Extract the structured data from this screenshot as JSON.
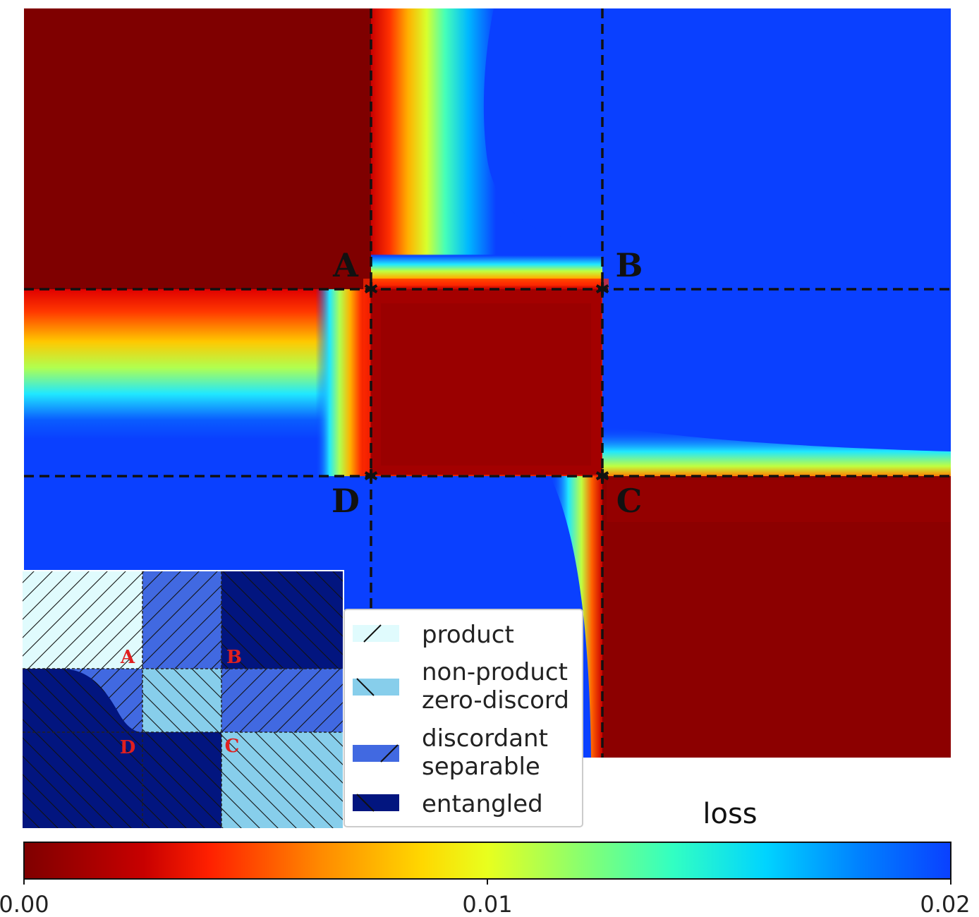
{
  "chart_data": {
    "type": "heatmap",
    "colormap": "jet_r",
    "colorbar": {
      "label": "loss",
      "range": [
        0.0,
        0.02
      ],
      "ticks": [
        "0.00",
        "0.01",
        "0.02"
      ],
      "orientation": "horizontal",
      "placement": "bottom"
    },
    "regions": [
      {
        "region": "top-left",
        "loss": 0.0
      },
      {
        "region": "top-middle",
        "loss": 0.02,
        "note": "red-to-blue gradient along left and bottom edges"
      },
      {
        "region": "top-right",
        "loss": 0.02
      },
      {
        "region": "middle-left",
        "loss": 0.02,
        "note": "red-to-blue gradient from top and right edges"
      },
      {
        "region": "center",
        "loss": 0.001
      },
      {
        "region": "middle-right",
        "loss": 0.02
      },
      {
        "region": "bottom-left",
        "loss": 0.02
      },
      {
        "region": "bottom-middle",
        "loss": 0.02,
        "note": "thin gradient band along right edge"
      },
      {
        "region": "bottom-right",
        "loss": 0.001
      }
    ],
    "points": [
      {
        "label": "A",
        "corner": "top-left of center"
      },
      {
        "label": "B",
        "corner": "top-right of center"
      },
      {
        "label": "C",
        "corner": "bottom-right of center"
      },
      {
        "label": "D",
        "corner": "bottom-left of center"
      }
    ],
    "grid": "dashed lines through A-B and D-C",
    "inset": {
      "labels": [
        "A",
        "B",
        "C",
        "D"
      ],
      "legend": [
        {
          "label": "product",
          "color": "#e0fbfd",
          "hatch": "/"
        },
        {
          "label": "non-product zero-discord",
          "color": "#87ceeb",
          "hatch": "\\"
        },
        {
          "label": "discordant separable",
          "color": "#4169e1",
          "hatch": "/"
        },
        {
          "label": "entangled",
          "color": "#02157f",
          "hatch": "\\"
        }
      ],
      "legend_lines": [
        [
          "product"
        ],
        [
          "non-product",
          "zero-discord"
        ],
        [
          "discordant",
          "separable"
        ],
        [
          "entangled"
        ]
      ],
      "cells": [
        [
          "product",
          "discordant separable",
          "entangled"
        ],
        [
          "entangled/discordant separable",
          "non-product zero-discord",
          "discordant separable"
        ],
        [
          "entangled",
          "entangled",
          "non-product zero-discord"
        ]
      ]
    }
  }
}
